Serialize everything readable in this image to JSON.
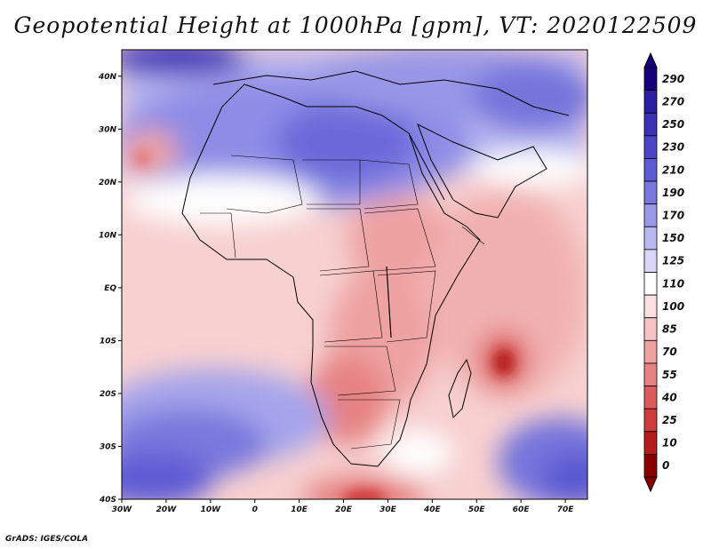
{
  "title": "Geopotential Height at 1000hPa [gpm], VT: 2020122509",
  "credit": "GrADS: IGES/COLA",
  "map": {
    "projection": "lat-lon",
    "lon_range": [
      -30,
      75
    ],
    "lat_range": [
      -40,
      45
    ],
    "lon_ticks": [
      "30W",
      "20W",
      "10W",
      "0",
      "10E",
      "20E",
      "30E",
      "40E",
      "50E",
      "60E",
      "70E"
    ],
    "lat_ticks": [
      "40N",
      "30N",
      "20N",
      "10N",
      "EQ",
      "10S",
      "20S",
      "30S",
      "40S"
    ],
    "features": {
      "high_north_africa": "Strong high over Libya/Sahara and Mediterranean (~170-210 gpm)",
      "low_mozambique_channel": "Deep low east of Madagascar (~40 gpm)",
      "low_south_africa_south": "Low south of South Africa (~40-55 gpm)",
      "high_south_atlantic": "High in South Atlantic (~170-210 gpm)",
      "high_south_indian": "High in southern Indian Ocean (~190-250 gpm)"
    }
  },
  "colorbar": {
    "levels": [
      "290",
      "270",
      "250",
      "230",
      "210",
      "190",
      "170",
      "150",
      "125",
      "110",
      "100",
      "85",
      "70",
      "55",
      "40",
      "25",
      "10",
      "0"
    ],
    "colors": [
      "#17007a",
      "#2a1fa0",
      "#3b31b8",
      "#4b45c8",
      "#5e5cd4",
      "#7a78de",
      "#9a98e8",
      "#bab8f0",
      "#d8d7f8",
      "#ffffff",
      "#fbe0e0",
      "#f5c3c3",
      "#eea2a2",
      "#e68282",
      "#dc5c5c",
      "#cf3c3c",
      "#b51c1c",
      "#8a0000"
    ]
  }
}
